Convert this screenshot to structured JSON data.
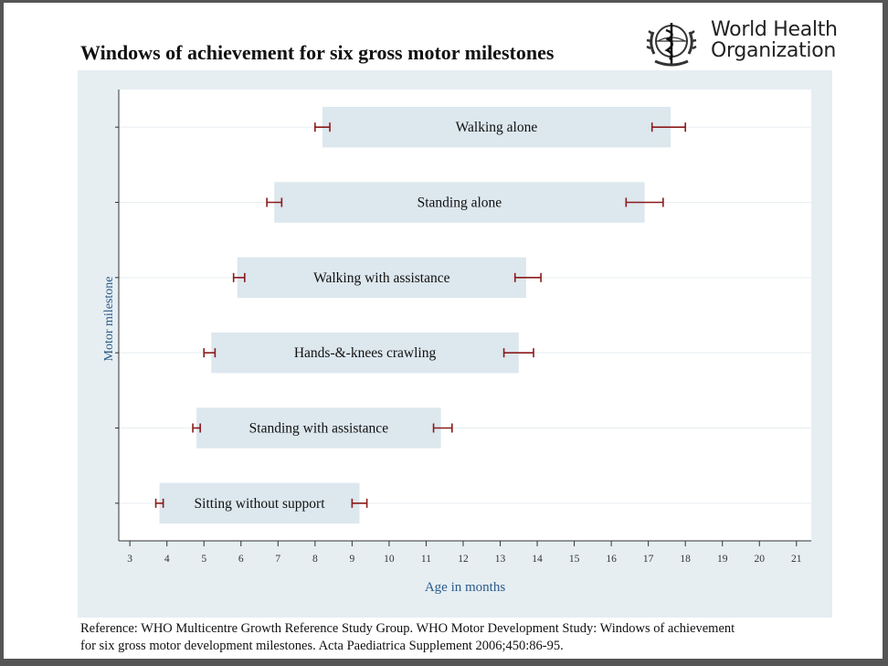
{
  "header": {
    "title": "Windows of achievement for six gross motor milestones",
    "logo_line1": "World Health",
    "logo_line2": "Organization",
    "logo_icon": "who-emblem-icon"
  },
  "chart_data": {
    "type": "bar",
    "subtype": "floating-range-with-error-bars",
    "title": "Windows of achievement for six gross motor milestones",
    "xlabel": "Age in months",
    "ylabel": "Motor milestone",
    "xlim": [
      2.7,
      21.4
    ],
    "xticks": [
      3,
      4,
      5,
      6,
      7,
      8,
      9,
      10,
      11,
      12,
      13,
      14,
      15,
      16,
      17,
      18,
      19,
      20,
      21
    ],
    "grid": true,
    "legend": "none",
    "colors": {
      "bar": "#dce7ee",
      "errorbar": "#8b1a1a",
      "grid": "#ffffff",
      "plot_bg": "#ffffff",
      "outer_bg": "#e6eef2"
    },
    "series": [
      {
        "name": "Walking alone",
        "start": 8.2,
        "end": 17.6,
        "start_ci": [
          8.0,
          8.4
        ],
        "end_ci": [
          17.1,
          18.0
        ]
      },
      {
        "name": "Standing alone",
        "start": 6.9,
        "end": 16.9,
        "start_ci": [
          6.7,
          7.1
        ],
        "end_ci": [
          16.4,
          17.4
        ]
      },
      {
        "name": "Walking with assistance",
        "start": 5.9,
        "end": 13.7,
        "start_ci": [
          5.8,
          6.1
        ],
        "end_ci": [
          13.4,
          14.1
        ]
      },
      {
        "name": "Hands-&-knees crawling",
        "start": 5.2,
        "end": 13.5,
        "start_ci": [
          5.0,
          5.3
        ],
        "end_ci": [
          13.1,
          13.9
        ]
      },
      {
        "name": "Standing with assistance",
        "start": 4.8,
        "end": 11.4,
        "start_ci": [
          4.7,
          4.9
        ],
        "end_ci": [
          11.2,
          11.7
        ]
      },
      {
        "name": "Sitting without support",
        "start": 3.8,
        "end": 9.2,
        "start_ci": [
          3.7,
          3.9
        ],
        "end_ci": [
          9.0,
          9.4
        ]
      }
    ]
  },
  "reference": {
    "line1": "Reference: WHO Multicentre Growth Reference Study Group. WHO Motor Development Study: Windows of achievement",
    "line2": "for six gross motor development milestones. Acta Paediatrica Supplement 2006;450:86-95."
  }
}
